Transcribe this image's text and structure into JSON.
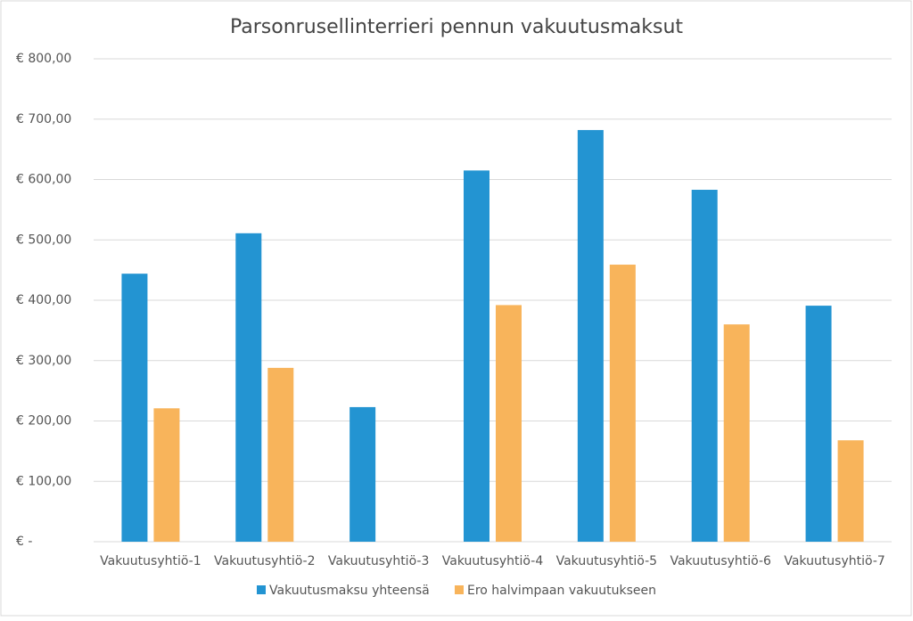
{
  "chart_data": {
    "type": "bar",
    "title": "Parsonrusellinterrieri pennun vakuutusmaksut",
    "categories": [
      "Vakuutusyhtiö-1",
      "Vakuutusyhtiö-2",
      "Vakuutusyhtiö-3",
      "Vakuutusyhtiö-4",
      "Vakuutusyhtiö-5",
      "Vakuutusyhtiö-6",
      "Vakuutusyhtiö-7"
    ],
    "series": [
      {
        "name": "Vakuutusmaksu yhteensä",
        "color": "#2394d2",
        "values": [
          444,
          511,
          223,
          615,
          682,
          583,
          391
        ]
      },
      {
        "name": "Ero halvimpaan vakuutukseen",
        "color": "#f8b45b",
        "values": [
          221,
          288,
          0,
          392,
          459,
          360,
          168
        ]
      }
    ],
    "ylim": [
      0,
      800
    ],
    "yticks": [
      {
        "value": 0,
        "label": "€ -"
      },
      {
        "value": 100,
        "label": "€ 100,00"
      },
      {
        "value": 200,
        "label": "€ 200,00"
      },
      {
        "value": 300,
        "label": "€ 300,00"
      },
      {
        "value": 400,
        "label": "€ 400,00"
      },
      {
        "value": 500,
        "label": "€ 500,00"
      },
      {
        "value": 600,
        "label": "€ 600,00"
      },
      {
        "value": 700,
        "label": "€ 700,00"
      },
      {
        "value": 800,
        "label": "€ 800,00"
      }
    ],
    "grid": true,
    "legend": "bottom"
  }
}
